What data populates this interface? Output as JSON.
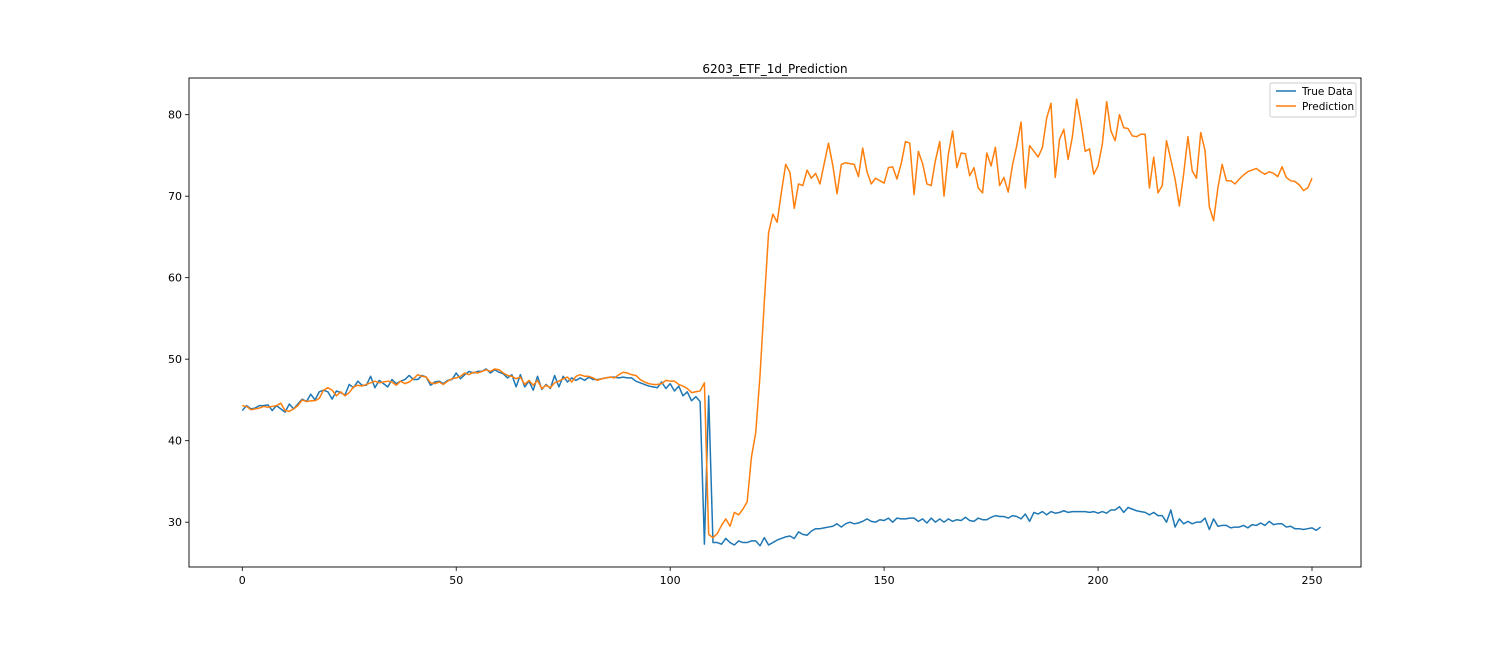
{
  "chart_data": {
    "type": "line",
    "title": "6203_ETF_1d_Prediction",
    "xlabel": "",
    "ylabel": "",
    "xlim": [
      -12.45,
      261.45
    ],
    "ylim": [
      24.5,
      84.5
    ],
    "xticks": [
      0,
      50,
      100,
      150,
      200,
      250
    ],
    "yticks": [
      30,
      40,
      50,
      60,
      70,
      80
    ],
    "grid": false,
    "legend_position": "top-right",
    "series": [
      {
        "name": "True Data",
        "color": "#1f77b4",
        "values": [
          43.7,
          44.3,
          43.9,
          44.0,
          44.3,
          44.3,
          44.4,
          43.7,
          44.3,
          43.9,
          43.5,
          44.5,
          43.9,
          44.5,
          45.1,
          44.8,
          45.7,
          45.0,
          46.0,
          46.2,
          46.0,
          45.1,
          46.1,
          45.9,
          45.6,
          46.9,
          46.5,
          47.3,
          46.8,
          46.8,
          47.9,
          46.5,
          47.4,
          47.0,
          46.6,
          47.5,
          47.0,
          47.3,
          47.5,
          48.0,
          47.5,
          47.5,
          48.0,
          47.8,
          46.8,
          47.2,
          47.3,
          47.0,
          47.4,
          47.5,
          48.3,
          47.6,
          48.1,
          48.5,
          48.3,
          48.5,
          48.5,
          48.8,
          48.3,
          48.7,
          48.4,
          48.2,
          47.7,
          48.1,
          46.6,
          48.1,
          46.6,
          47.3,
          46.2,
          47.9,
          46.3,
          46.9,
          46.4,
          48.0,
          46.6,
          47.9,
          47.2,
          47.7,
          47.4,
          47.7,
          47.4,
          47.8,
          47.5,
          47.5,
          47.6,
          47.7,
          47.8,
          47.8,
          47.7,
          47.8,
          47.7,
          47.7,
          47.3,
          47.1,
          46.9,
          46.7,
          46.6,
          46.5,
          47.2,
          46.4,
          47.0,
          46.1,
          46.7,
          45.5,
          46.0,
          44.9,
          45.4,
          44.8,
          27.3,
          45.5,
          27.5,
          27.5,
          27.3,
          28.0,
          27.5,
          27.2,
          27.7,
          27.5,
          27.5,
          27.7,
          27.7,
          27.1,
          28.1,
          27.2,
          27.5,
          27.8,
          28.0,
          28.2,
          28.3,
          28.0,
          28.8,
          28.5,
          28.4,
          28.9,
          29.2,
          29.2,
          29.3,
          29.4,
          29.5,
          29.8,
          29.4,
          29.8,
          30.0,
          29.8,
          29.9,
          30.1,
          30.4,
          30.1,
          30.0,
          30.3,
          30.2,
          30.5,
          30.0,
          30.5,
          30.4,
          30.4,
          30.5,
          30.5,
          30.1,
          30.4,
          29.9,
          30.5,
          30.0,
          30.4,
          30.0,
          30.4,
          30.1,
          30.3,
          30.2,
          30.6,
          30.2,
          30.1,
          30.5,
          30.3,
          30.3,
          30.6,
          30.8,
          30.7,
          30.7,
          30.5,
          30.8,
          30.7,
          30.4,
          31.0,
          30.1,
          31.2,
          31.0,
          31.3,
          30.9,
          31.3,
          31.1,
          31.2,
          31.4,
          31.2,
          31.3,
          31.3,
          31.3,
          31.3,
          31.2,
          31.3,
          31.1,
          31.3,
          31.1,
          31.5,
          31.5,
          31.9,
          31.2,
          31.8,
          31.6,
          31.4,
          31.3,
          31.2,
          30.9,
          31.2,
          30.8,
          30.8,
          30.0,
          31.5,
          29.4,
          30.4,
          29.8,
          30.1,
          29.8,
          30.0,
          30.0,
          30.5,
          29.1,
          30.4,
          29.5,
          29.6,
          29.6,
          29.3,
          29.4,
          29.4,
          29.6,
          29.3,
          29.7,
          29.6,
          29.9,
          29.6,
          30.1,
          29.7,
          29.8,
          29.8,
          29.4,
          29.5,
          29.2,
          29.2,
          29.1,
          29.2,
          29.3,
          29.0,
          29.4
        ]
      },
      {
        "name": "Prediction",
        "color": "#ff7f0e",
        "values": [
          44.3,
          44.2,
          43.8,
          43.9,
          44.0,
          44.2,
          44.1,
          44.2,
          44.3,
          44.6,
          43.7,
          43.6,
          43.9,
          44.3,
          45.0,
          44.8,
          44.9,
          44.9,
          45.2,
          46.2,
          46.5,
          46.2,
          45.5,
          46.0,
          45.5,
          45.9,
          46.6,
          46.8,
          46.7,
          46.9,
          47.1,
          47.3,
          47.1,
          47.2,
          47.3,
          47.2,
          46.8,
          47.3,
          47.0,
          47.2,
          47.6,
          48.1,
          47.9,
          47.8,
          47.1,
          47.0,
          47.2,
          46.9,
          47.3,
          47.6,
          47.7,
          47.9,
          48.3,
          48.1,
          48.4,
          48.3,
          48.5,
          48.7,
          48.5,
          48.8,
          48.7,
          48.3,
          48.0,
          47.9,
          47.6,
          47.8,
          46.9,
          47.4,
          46.8,
          47.4,
          46.4,
          46.8,
          46.5,
          47.1,
          47.3,
          47.6,
          47.8,
          47.2,
          47.9,
          48.1,
          47.9,
          47.9,
          47.7,
          47.4,
          47.6,
          47.7,
          47.8,
          47.7,
          48.1,
          48.4,
          48.3,
          48.1,
          48.0,
          47.5,
          47.2,
          47.0,
          46.9,
          46.9,
          47.0,
          47.4,
          47.3,
          47.3,
          46.9,
          46.7,
          46.4,
          45.9,
          46.0,
          46.1,
          47.1,
          28.5,
          28.1,
          28.6,
          29.6,
          30.4,
          29.5,
          31.2,
          30.9,
          31.6,
          32.5,
          38.0,
          41.0,
          48.0,
          57.0,
          65.5,
          67.8,
          66.8,
          70.5,
          73.9,
          72.9,
          68.5,
          71.5,
          71.3,
          73.2,
          72.2,
          72.8,
          71.5,
          74.0,
          76.5,
          73.8,
          70.3,
          73.9,
          74.1,
          74.0,
          73.9,
          72.4,
          75.9,
          73.0,
          71.5,
          72.2,
          71.9,
          71.6,
          73.5,
          73.6,
          72.1,
          74.0,
          76.7,
          76.5,
          70.2,
          75.5,
          74.0,
          71.5,
          71.3,
          74.4,
          76.7,
          70.0,
          75.1,
          78.0,
          73.5,
          75.3,
          75.2,
          72.5,
          73.5,
          71.0,
          70.4,
          75.3,
          73.7,
          76.0,
          71.3,
          72.3,
          70.5,
          73.8,
          76.2,
          79.1,
          71.0,
          76.2,
          75.5,
          74.8,
          76.0,
          79.6,
          81.4,
          72.3,
          77.0,
          78.2,
          74.5,
          77.3,
          81.9,
          79.0,
          75.5,
          75.8,
          72.7,
          73.7,
          76.4,
          81.6,
          78.0,
          76.8,
          80.0,
          78.4,
          78.3,
          77.4,
          77.3,
          77.6,
          77.6,
          71.0,
          74.8,
          70.4,
          71.3,
          76.8,
          74.5,
          72.1,
          68.8,
          72.7,
          77.3,
          73.1,
          72.2,
          77.8,
          75.6,
          68.7,
          67.0,
          71.0,
          73.9,
          71.9,
          71.9,
          71.5,
          72.1,
          72.6,
          73.0,
          73.2,
          73.4,
          73.0,
          72.7,
          73.0,
          72.8,
          72.4,
          73.6,
          72.3,
          71.9,
          71.8,
          71.4,
          70.7,
          71.0,
          72.2
        ]
      }
    ]
  }
}
